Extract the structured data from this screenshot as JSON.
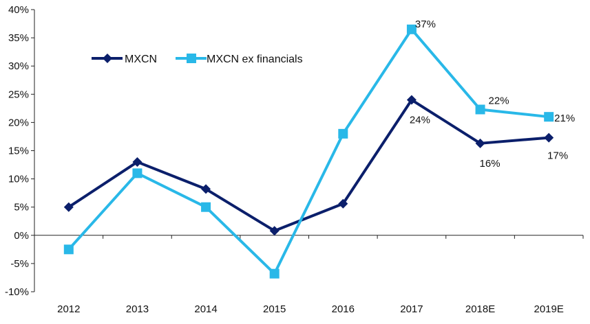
{
  "chart_data": {
    "type": "line",
    "categories": [
      "2012",
      "2013",
      "2014",
      "2015",
      "2016",
      "2017",
      "2018E",
      "2019E"
    ],
    "series": [
      {
        "name": "MXCN",
        "values": [
          5.0,
          13.0,
          8.2,
          0.8,
          5.6,
          24.0,
          16.3,
          17.3
        ],
        "color": "#0b1f6b",
        "marker": "diamond"
      },
      {
        "name": "MXCN ex financials",
        "values": [
          -2.5,
          11.0,
          5.0,
          -6.8,
          18.0,
          36.5,
          22.3,
          21.0
        ],
        "color": "#29b8e8",
        "marker": "square"
      }
    ],
    "ylim": [
      -10,
      40
    ],
    "yticks": [
      "-10%",
      "-5%",
      "0%",
      "5%",
      "10%",
      "15%",
      "20%",
      "25%",
      "30%",
      "35%",
      "40%"
    ],
    "annotations": [
      {
        "series": 0,
        "index": 5,
        "text": "24%"
      },
      {
        "series": 0,
        "index": 6,
        "text": "16%"
      },
      {
        "series": 0,
        "index": 7,
        "text": "17%"
      },
      {
        "series": 1,
        "index": 5,
        "text": "37%"
      },
      {
        "series": 1,
        "index": 6,
        "text": "22%"
      },
      {
        "series": 1,
        "index": 7,
        "text": "21%"
      }
    ],
    "legend_position": "top-left",
    "grid": false
  }
}
